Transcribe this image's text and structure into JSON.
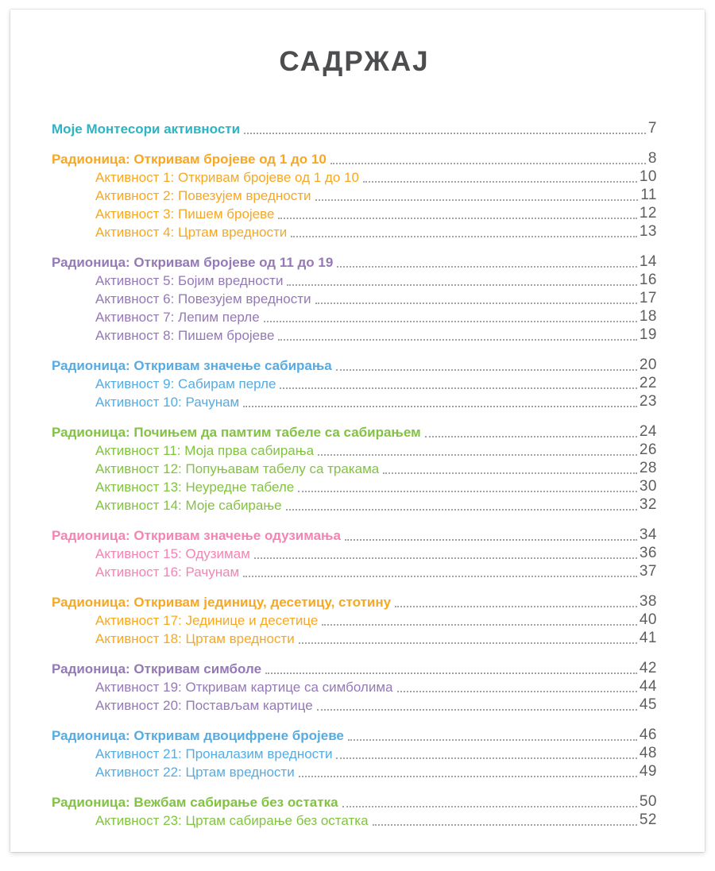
{
  "title": "САДРЖАЈ",
  "colors": {
    "teal": "#2cb4c3",
    "orange": "#f7a823",
    "purple": "#9579b7",
    "blue": "#55ace3",
    "green": "#82c341",
    "pink": "#f484b4",
    "title_text": "#4c4d4f",
    "page_number": "#5d5e61",
    "dot_leader": "#a2a4a7"
  },
  "toc": {
    "intro": {
      "label": "Моје Монтесори активности",
      "page": "7",
      "color": "teal"
    },
    "sections": [
      {
        "prefix": "Радионица:",
        "title": "Откривам бројеве од 1 до 10",
        "page": "8",
        "color": "orange",
        "items": [
          {
            "label": "Активност 1: Откривам бројеве од 1 до 10",
            "page": "10"
          },
          {
            "label": "Активност 2: Повезујем вредности",
            "page": "11"
          },
          {
            "label": "Активност 3: Пишем бројеве",
            "page": "12"
          },
          {
            "label": "Активност 4: Цртам вредности",
            "page": "13"
          }
        ]
      },
      {
        "prefix": "Радионица:",
        "title": "Откривам бројеве од 11 до 19",
        "page": "14",
        "color": "purple",
        "items": [
          {
            "label": "Активност 5: Бојим вредности",
            "page": "16"
          },
          {
            "label": "Активност 6: Повезујем вредности",
            "page": "17"
          },
          {
            "label": "Активност 7: Лепим перле",
            "page": "18"
          },
          {
            "label": "Активност 8: Пишем бројеве",
            "page": "19"
          }
        ]
      },
      {
        "prefix": "Радионица:",
        "title": "Откривам значење сабирања",
        "page": "20",
        "color": "blue",
        "items": [
          {
            "label": "Активност 9: Сабирам перле",
            "page": "22"
          },
          {
            "label": "Активност 10: Рачунам",
            "page": "23"
          }
        ]
      },
      {
        "prefix": "Радионица:",
        "title": "Почињем да памтим табеле са сабирањем",
        "page": "24",
        "color": "green",
        "items": [
          {
            "label": "Активност 11: Моја прва сабирања",
            "page": "26"
          },
          {
            "label": "Активност 12: Попуњавам табелу са тракама",
            "page": "28"
          },
          {
            "label": "Активност 13: Неуредне табеле",
            "page": "30"
          },
          {
            "label": "Активност 14: Моје сабирање",
            "page": "32"
          }
        ]
      },
      {
        "prefix": "Радионица:",
        "title": "Откривам значење одузимања",
        "page": "34",
        "color": "pink",
        "items": [
          {
            "label": "Активност 15: Одузимам",
            "page": "36"
          },
          {
            "label": "Активност 16: Рачунам",
            "page": "37"
          }
        ]
      },
      {
        "prefix": "Радионица:",
        "title": "Откривам јединицу, десетицу, стотину",
        "page": "38",
        "color": "orange",
        "items": [
          {
            "label": "Активност 17: Јединице и десетице",
            "page": "40"
          },
          {
            "label": "Активност 18: Цртам вредности",
            "page": "41"
          }
        ]
      },
      {
        "prefix": "Радионица:",
        "title": "Откривам симболе",
        "page": "42",
        "color": "purple",
        "items": [
          {
            "label": "Активност 19: Откривам картице са симболима",
            "page": "44"
          },
          {
            "label": "Активност 20: Постављам картице",
            "page": "45"
          }
        ]
      },
      {
        "prefix": "Радионица:",
        "title": "Откривам двоцифрене бројеве",
        "page": "46",
        "color": "blue",
        "items": [
          {
            "label": "Активност 21: Проналазим вредности",
            "page": "48"
          },
          {
            "label": "Активност 22: Цртам вредности",
            "page": "49"
          }
        ]
      },
      {
        "prefix": "Радионица:",
        "title": "Вежбам сабирање без остатка",
        "page": "50",
        "color": "green",
        "items": [
          {
            "label": "Активност 23: Цртам сабирање без остатка",
            "page": "52"
          }
        ]
      }
    ]
  }
}
